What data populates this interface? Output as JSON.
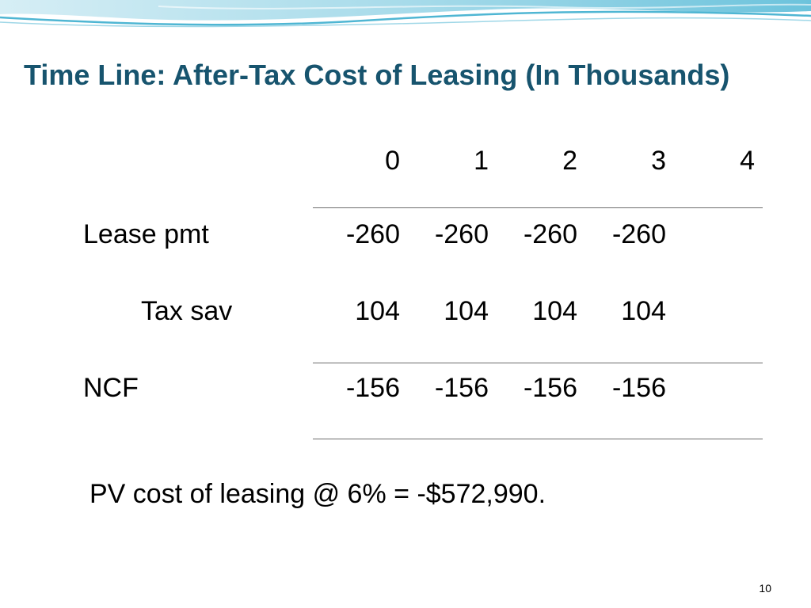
{
  "slide": {
    "title": "Time Line:  After-Tax Cost of Leasing (In Thousands)",
    "periods": [
      "0",
      "1",
      "2",
      "3",
      "4"
    ],
    "rows": [
      {
        "label": "Lease pmt",
        "values": [
          "-260",
          "-260",
          "-260",
          "-260"
        ]
      },
      {
        "label": "Tax sav",
        "values": [
          "104",
          "104",
          "104",
          "104"
        ]
      },
      {
        "label": "NCF",
        "values": [
          "-156",
          "-156",
          "-156",
          "-156"
        ]
      }
    ],
    "summary": "PV cost of leasing @ 6% = -$572,990.",
    "page_number": "10"
  },
  "colors": {
    "title": "#17546e",
    "rule": "#6d6d6d",
    "wave_light": "#bfe3ee",
    "wave_mid": "#7fcbe0",
    "wave_dark": "#35a9c8"
  }
}
